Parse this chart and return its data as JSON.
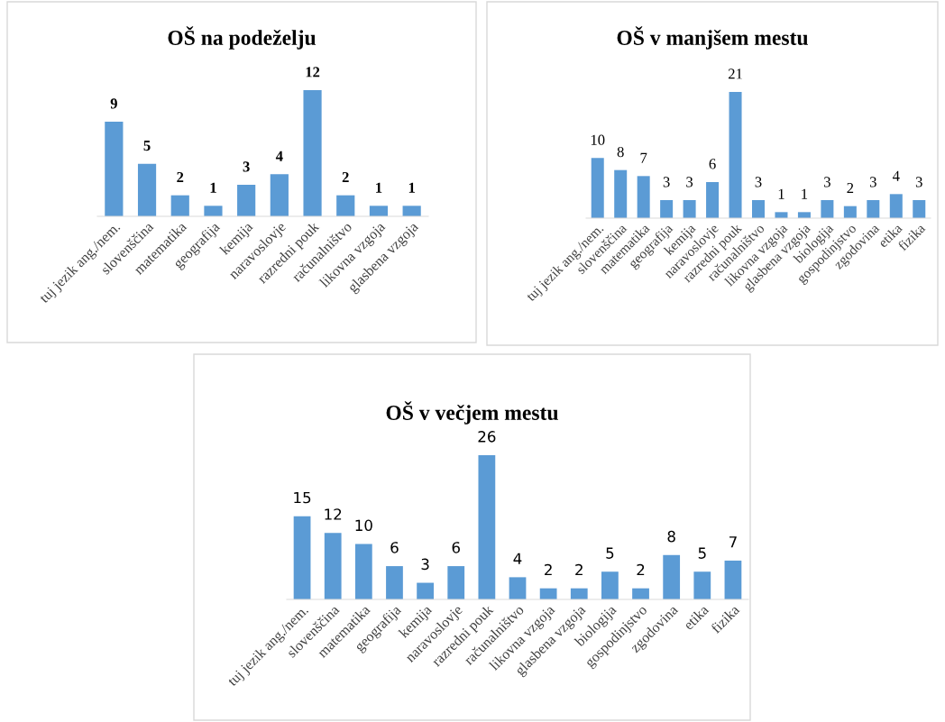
{
  "chart_data": [
    {
      "type": "bar",
      "title": "OŠ na podeželju",
      "categories": [
        "tuj jezik ang./nem.",
        "slovenščina",
        "matematika",
        "geografija",
        "kemija",
        "naravoslovje",
        "razredni pouk",
        "računalništvo",
        "likovna vzgoja",
        "glasbena vzgoja"
      ],
      "values": [
        9,
        5,
        2,
        1,
        3,
        4,
        12,
        2,
        1,
        1
      ],
      "color": "#5b9bd5",
      "data_labels": true,
      "grid": false,
      "legend": false,
      "tick_labels": "x"
    },
    {
      "type": "bar",
      "title": "OŠ v manjšem mestu",
      "categories": [
        "tuj jezik ang./nem.",
        "slovenščina",
        "matematika",
        "geografija",
        "kemija",
        "naravoslovje",
        "razredni pouk",
        "računalništvo",
        "likovna vzgoja",
        "glasbena vzgoja",
        "biologija",
        "gospodinjstvo",
        "zgodovina",
        "etika",
        "fizika"
      ],
      "values": [
        10,
        8,
        7,
        3,
        3,
        6,
        21,
        3,
        1,
        1,
        3,
        2,
        3,
        4,
        3
      ],
      "color": "#5b9bd5",
      "data_labels": true,
      "grid": false,
      "legend": false,
      "tick_labels": "x"
    },
    {
      "type": "bar",
      "title": "OŠ v večjem mestu",
      "categories": [
        "tuj jezik ang./nem.",
        "slovenščina",
        "matematika",
        "geografija",
        "kemija",
        "naravoslovje",
        "razredni pouk",
        "računalništvo",
        "likovna vzgoja",
        "glasbena vzgoja",
        "biologija",
        "gospodinjstvo",
        "zgodovina",
        "etika",
        "fizika"
      ],
      "values": [
        15,
        12,
        10,
        6,
        3,
        6,
        26,
        4,
        2,
        2,
        5,
        2,
        8,
        5,
        7
      ],
      "color": "#5b9bd5",
      "data_labels": true,
      "grid": false,
      "legend": false,
      "tick_labels": "x"
    }
  ]
}
